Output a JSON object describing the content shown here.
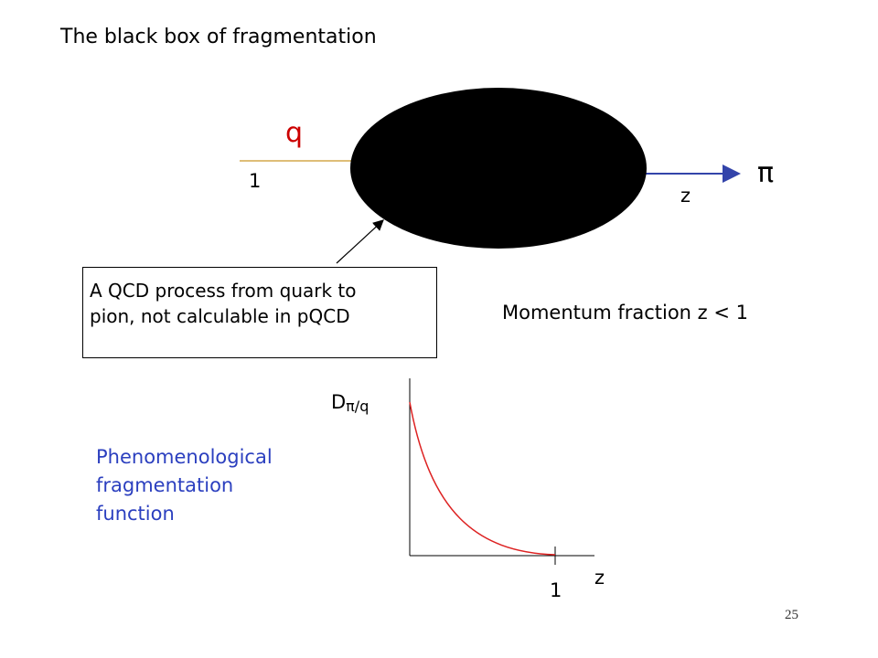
{
  "slide": {
    "title": "The black box of fragmentation",
    "page_number": "25"
  },
  "diagram": {
    "quark_label": "q",
    "quark_momentum": "1",
    "pion_label": "π",
    "pion_momentum": "z",
    "box_note_line1": "A QCD process from quark to",
    "box_note_line2": "pion, not calculable in pQCD",
    "momentum_fraction": "Momentum fraction z < 1",
    "colors": {
      "quark_line": "#d4a84a",
      "quark_label": "#cc0000",
      "pion_arrow": "#3344aa",
      "blob": "#000000"
    }
  },
  "plot": {
    "ylabel_main": "D",
    "ylabel_sub": "π/q",
    "xlabel": "z",
    "x_tick": "1",
    "curve_color": "#dd2222",
    "caption_line1": "Phenomenological",
    "caption_line2": "fragmentation",
    "caption_line3": "function",
    "caption_color": "#2b3fbf"
  }
}
